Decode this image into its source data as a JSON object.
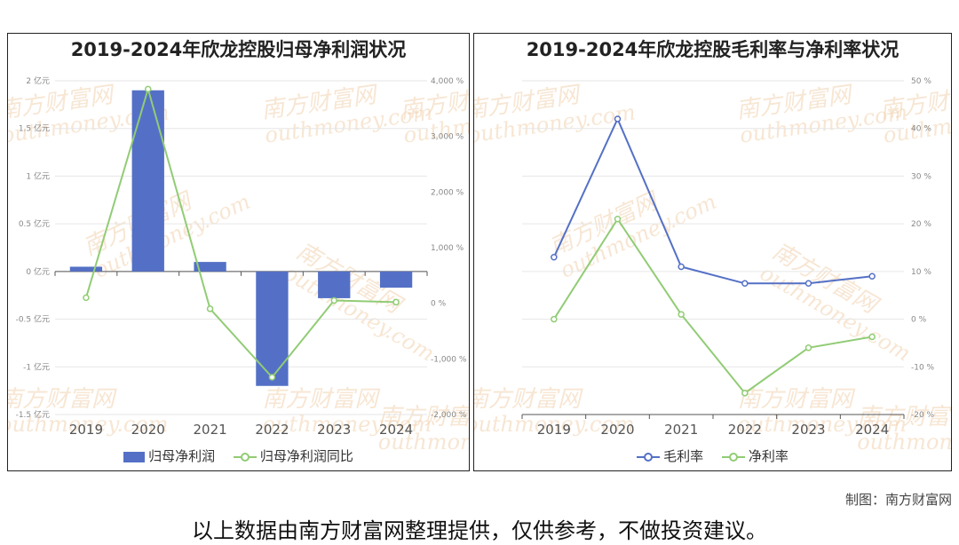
{
  "charts": {
    "left_title": "2019-2024年欣龙控股归母净利润状况",
    "right_title": "2019-2024年欣龙控股毛利率与净利率状况"
  },
  "watermark": {
    "cn": "南方财富网",
    "en": "outhmoney.com"
  },
  "credit": "制图：南方财富网",
  "footer": "以上数据由南方财富网整理提供，仅供参考，不做投资建议。",
  "colors": {
    "blue": "#5470c6",
    "green": "#91cc75",
    "grid": "#e6e6e6",
    "axis": "#555555"
  },
  "chart_data": [
    {
      "type": "bar",
      "title": "2019-2024年欣龙控股归母净利润状况",
      "categories": [
        "2019",
        "2020",
        "2021",
        "2022",
        "2023",
        "2024"
      ],
      "series": [
        {
          "name": "归母净利润",
          "type": "bar",
          "axis": "left",
          "values": [
            0.05,
            1.9,
            0.1,
            -1.2,
            -0.28,
            -0.17
          ]
        },
        {
          "name": "归母净利润同比",
          "type": "line",
          "axis": "right",
          "values": [
            100,
            3850,
            -100,
            -1330,
            50,
            20
          ]
        }
      ],
      "yleft": {
        "min": -1.5,
        "max": 2,
        "step": 0.5,
        "ticks": [
          "2 亿元",
          "1.5 亿元",
          "1 亿元",
          "0.5 亿元",
          "0 亿元",
          "-0.5 亿元",
          "-1 亿元",
          "-1.5 亿元"
        ]
      },
      "yright": {
        "min": -2000,
        "max": 4000,
        "step": 1000,
        "ticks": [
          "4,000 %",
          "3,000 %",
          "2,000 %",
          "1,000 %",
          "0 %",
          "-1,000 %",
          "-2,000 %"
        ]
      },
      "legend": "bottom"
    },
    {
      "type": "line",
      "title": "2019-2024年欣龙控股毛利率与净利率状况",
      "categories": [
        "2019",
        "2020",
        "2021",
        "2022",
        "2023",
        "2024"
      ],
      "series": [
        {
          "name": "毛利率",
          "values": [
            13.0,
            42.0,
            11.0,
            7.5,
            7.5,
            9.0
          ]
        },
        {
          "name": "净利率",
          "values": [
            0.0,
            21.0,
            1.0,
            -15.5,
            -6.0,
            -3.7
          ]
        }
      ],
      "yright": {
        "min": -20,
        "max": 50,
        "step": 10,
        "ticks": [
          "50 %",
          "40 %",
          "30 %",
          "20 %",
          "10 %",
          "0 %",
          "-10 %",
          "-20 %"
        ]
      },
      "legend": "bottom"
    }
  ]
}
